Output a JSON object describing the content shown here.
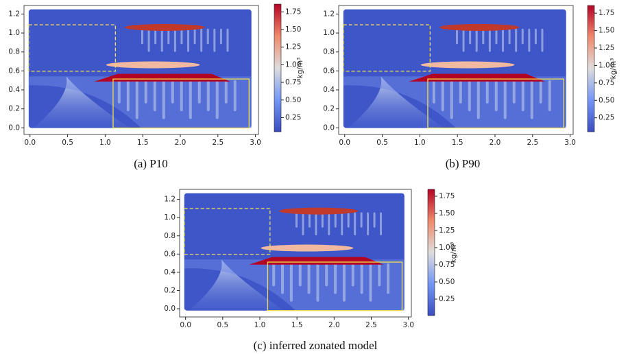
{
  "panels": [
    {
      "caption": "(a) P10",
      "xlim": [
        -0.08,
        3.04
      ],
      "ylim": [
        -0.07,
        1.29
      ],
      "xticks": [
        {
          "value": 0,
          "label": "0.0"
        },
        0.5,
        {
          "value": 1,
          "label": "1.0"
        },
        1.5,
        {
          "value": 2,
          "label": "2.0"
        },
        2.5,
        {
          "value": 3,
          "label": "3.0"
        }
      ],
      "yticks": [
        {
          "value": 0,
          "label": "0.0"
        },
        0.2,
        0.4,
        0.6,
        0.8,
        {
          "value": 1,
          "label": "1.0"
        },
        1.2
      ],
      "colorbar": {
        "lim": [
          0.05,
          1.86
        ],
        "label": "kg/m³",
        "ticks": [
          0.25,
          {
            "value": 0.5,
            "label": "0.50"
          },
          0.75,
          {
            "value": 1,
            "label": "1.00"
          },
          1.25,
          {
            "value": 1.5,
            "label": "1.50"
          },
          1.75
        ]
      }
    },
    {
      "caption": "(b) P90",
      "xlim": [
        -0.08,
        3.04
      ],
      "ylim": [
        -0.07,
        1.29
      ],
      "xticks": [
        {
          "value": 0,
          "label": "0.0"
        },
        0.5,
        {
          "value": 1,
          "label": "1.0"
        },
        1.5,
        {
          "value": 2,
          "label": "2.0"
        },
        2.5,
        {
          "value": 3,
          "label": "3.0"
        }
      ],
      "yticks": [
        {
          "value": 0,
          "label": "0.0"
        },
        0.2,
        0.4,
        0.6,
        0.8,
        {
          "value": 1,
          "label": "1.0"
        },
        1.2
      ],
      "colorbar": {
        "lim": [
          0.05,
          1.86
        ],
        "label": "kg/m³",
        "ticks": [
          0.25,
          {
            "value": 0.5,
            "label": "0.50"
          },
          0.75,
          {
            "value": 1,
            "label": "1.00"
          },
          1.25,
          {
            "value": 1.5,
            "label": "1.50"
          },
          1.75
        ]
      }
    },
    {
      "caption": "(c) inferred zonated model",
      "xlim": [
        -0.08,
        3.04
      ],
      "ylim": [
        -0.09,
        1.31
      ],
      "xticks": [
        {
          "value": 0,
          "label": "0.0"
        },
        0.5,
        {
          "value": 1,
          "label": "1.0"
        },
        1.5,
        {
          "value": 2,
          "label": "2.0"
        },
        2.5,
        {
          "value": 3,
          "label": "3.0"
        }
      ],
      "yticks": [
        {
          "value": 0,
          "label": "0.0"
        },
        0.2,
        0.4,
        0.6,
        0.8,
        {
          "value": 1,
          "label": "1.0"
        },
        1.2
      ],
      "colorbar": {
        "lim": [
          0.01,
          1.85
        ],
        "label": "kg/m³",
        "ticks": [
          0.25,
          {
            "value": 0.5,
            "label": "0.50"
          },
          0.75,
          {
            "value": 1,
            "label": "1.00"
          },
          1.25,
          {
            "value": 1.5,
            "label": "1.50"
          },
          1.75
        ]
      }
    }
  ]
}
